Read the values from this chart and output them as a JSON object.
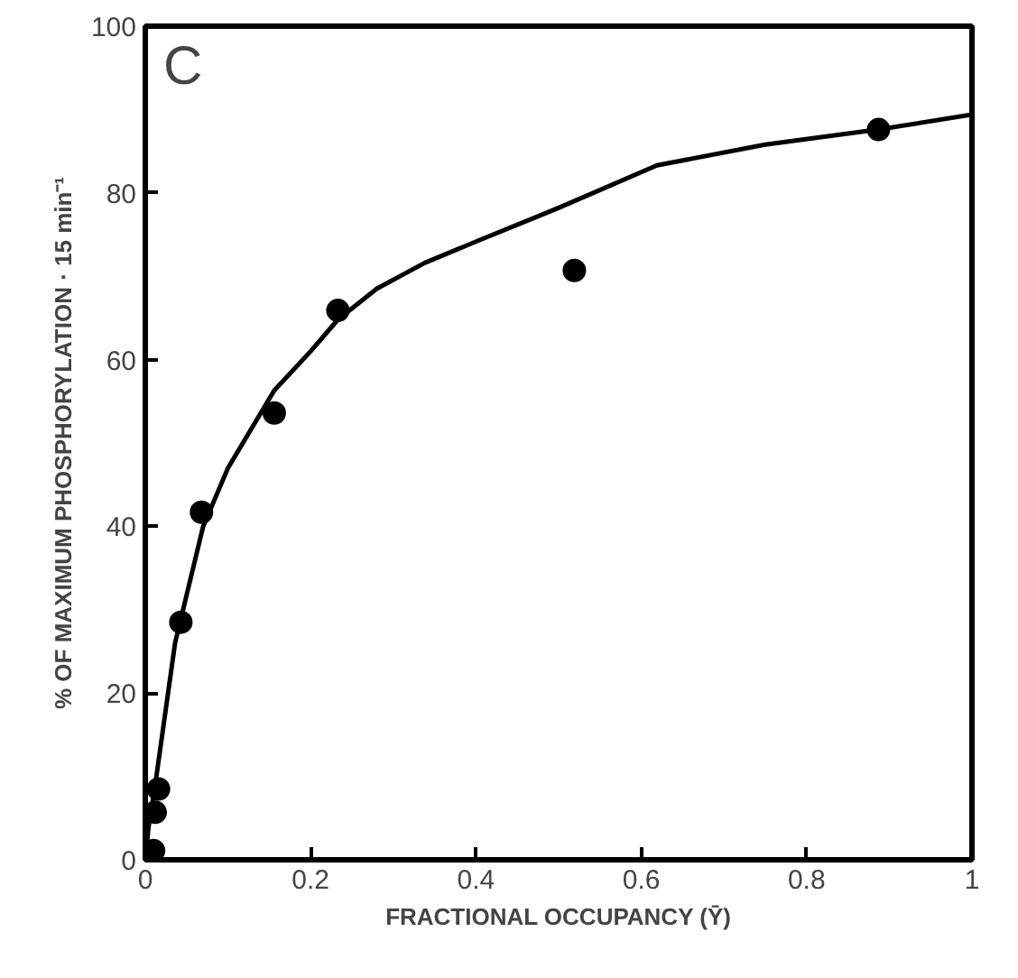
{
  "chart_data": {
    "type": "scatter",
    "xlabel": "FRACTIONAL OCCUPANCY (Ȳ)",
    "ylabel": "% OF MAXIMUM PHOSPHORYLATION · 15 min⁻¹",
    "annotations": [
      "C"
    ],
    "xlim": [
      0,
      1
    ],
    "ylim": [
      0,
      100
    ],
    "xticks": [
      0,
      {
        "value": 0.2,
        "label": "0.2"
      },
      {
        "value": 0.4,
        "label": "0.4"
      },
      {
        "value": 0.6,
        "label": "0.6"
      },
      {
        "value": 0.8,
        "label": "0.8"
      },
      1
    ],
    "yticks": [
      0,
      20,
      40,
      60,
      80,
      100
    ],
    "grid": false,
    "series": [
      {
        "marker": "circle",
        "color": "#000000",
        "x": [
          0.01,
          0.012,
          0.016,
          0.043,
          0.068,
          0.156,
          0.233,
          0.519,
          0.887
        ],
        "values": [
          1.1,
          5.7,
          8.5,
          28.5,
          41.7,
          53.6,
          65.9,
          70.7,
          87.6
        ]
      },
      {
        "type": "line",
        "color": "#000000",
        "line_style": "solid",
        "x": [
          0,
          0.004,
          0.012,
          0.036,
          0.07,
          0.1,
          0.156,
          0.2,
          0.233,
          0.28,
          0.338,
          0.406,
          0.5,
          0.619,
          0.75,
          0.887,
          1
        ],
        "values": [
          0,
          4,
          9,
          26,
          40,
          47,
          56.3,
          61,
          64.8,
          68.5,
          71.6,
          74.4,
          78.2,
          83.3,
          85.8,
          87.6,
          89.4
        ]
      }
    ]
  }
}
